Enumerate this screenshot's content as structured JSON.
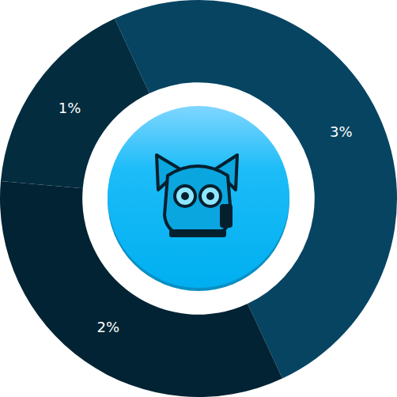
{
  "chart_data": {
    "type": "pie",
    "values": [
      3,
      2,
      1
    ],
    "value_labels": [
      "3%",
      "2%",
      "1%"
    ],
    "colors": [
      "#064462",
      "#022333",
      "#032c3f"
    ],
    "data_labels": true
  }
}
